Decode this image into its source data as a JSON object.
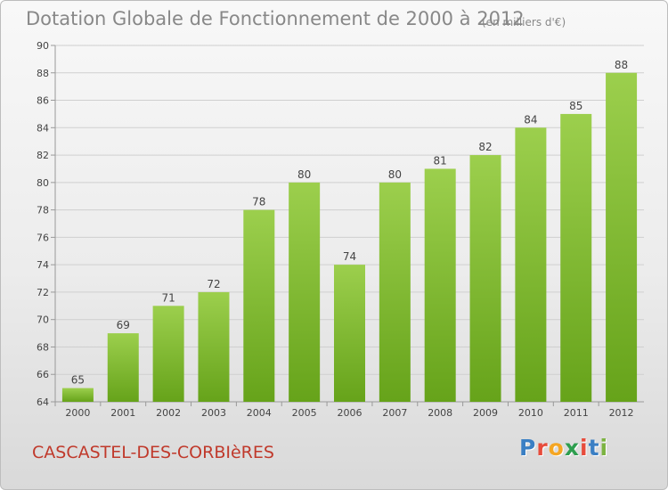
{
  "header": {
    "title": "Dotation Globale de Fonctionnement de 2000 à 2012",
    "unit": "(en milliers d'€)"
  },
  "footer": {
    "commune": "CASCASTEL-DES-CORBIèRES",
    "logo_letters": [
      "P",
      "r",
      "o",
      "x",
      "i",
      "t",
      "i"
    ],
    "logo_colors": [
      "#3a7fc4",
      "#e74c3c",
      "#f5a623",
      "#2e9e4f",
      "#e74c3c",
      "#3a7fc4",
      "#7cb342"
    ]
  },
  "colors": {
    "bar_top": "#9ccf4d",
    "bar_bottom": "#66a31a",
    "grid": "#cfcfcf",
    "axis": "#999999"
  },
  "chart_data": {
    "type": "bar",
    "title": "Dotation Globale de Fonctionnement de 2000 à 2012",
    "subtitle": "(en milliers d'€)",
    "categories": [
      "2000",
      "2001",
      "2002",
      "2003",
      "2004",
      "2005",
      "2006",
      "2007",
      "2008",
      "2009",
      "2010",
      "2011",
      "2012"
    ],
    "values": [
      65,
      69,
      71,
      72,
      78,
      80,
      74,
      80,
      81,
      82,
      84,
      85,
      88
    ],
    "ylim": [
      64,
      90
    ],
    "yticks": [
      64,
      66,
      68,
      70,
      72,
      74,
      76,
      78,
      80,
      82,
      84,
      86,
      88,
      90
    ],
    "grid": true,
    "legend": "none"
  }
}
